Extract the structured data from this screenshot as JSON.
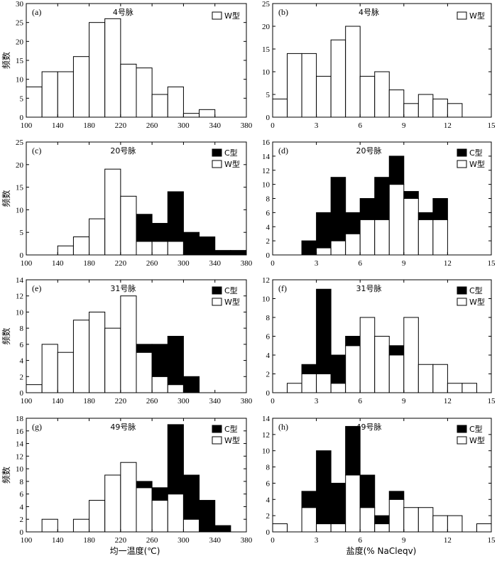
{
  "colors": {
    "C": "#000000",
    "W": "#ffffff",
    "stroke": "#000000"
  },
  "labels": {
    "y_axis": "频数",
    "x_temp": "均一温度(℃)",
    "x_salinity": "盐度(% NaCleqv)",
    "legend_C": "C型",
    "legend_W": "W型"
  },
  "chart_data": [
    {
      "panel": "(a)",
      "vein": "4号脉",
      "type": "bar",
      "x_kind": "temp",
      "xlim": [
        100,
        380
      ],
      "xticks": [
        100,
        140,
        180,
        220,
        260,
        300,
        340,
        380
      ],
      "ylim": [
        0,
        30
      ],
      "yticks": [
        0,
        5,
        10,
        15,
        20,
        25,
        30
      ],
      "bin_width": 20,
      "bins": [
        100,
        120,
        140,
        160,
        180,
        200,
        220,
        240,
        260,
        280,
        300,
        320
      ],
      "series": [
        {
          "name": "W型",
          "values": [
            8,
            12,
            12,
            16,
            25,
            26,
            14,
            13,
            6,
            8,
            1,
            2
          ]
        }
      ],
      "legend": [
        "W"
      ]
    },
    {
      "panel": "(b)",
      "vein": "4号脉",
      "type": "bar",
      "x_kind": "salinity",
      "xlim": [
        0,
        15
      ],
      "xticks": [
        0,
        3,
        6,
        9,
        12,
        15
      ],
      "ylim": [
        0,
        25
      ],
      "yticks": [
        0,
        5,
        10,
        15,
        20,
        25
      ],
      "bin_width": 1,
      "bins": [
        0,
        1,
        2,
        3,
        4,
        5,
        6,
        7,
        8,
        9,
        10,
        11,
        12
      ],
      "series": [
        {
          "name": "W型",
          "values": [
            4,
            14,
            14,
            9,
            17,
            20,
            9,
            10,
            6,
            3,
            5,
            4,
            3
          ]
        }
      ],
      "legend": [
        "W"
      ]
    },
    {
      "panel": "(c)",
      "vein": "20号脉",
      "type": "bar",
      "x_kind": "temp",
      "xlim": [
        100,
        380
      ],
      "xticks": [
        100,
        140,
        180,
        220,
        260,
        300,
        340,
        380
      ],
      "ylim": [
        0,
        25
      ],
      "yticks": [
        0,
        5,
        10,
        15,
        20,
        25
      ],
      "bin_width": 20,
      "bins": [
        140,
        160,
        180,
        200,
        220,
        240,
        260,
        280,
        300,
        320,
        340,
        360
      ],
      "series": [
        {
          "name": "W型",
          "values": [
            2,
            4,
            8,
            19,
            13,
            3,
            3,
            3,
            0,
            0,
            0,
            0
          ]
        },
        {
          "name": "C型",
          "values": [
            0,
            0,
            0,
            0,
            0,
            6,
            4,
            11,
            5,
            4,
            1,
            1
          ]
        }
      ],
      "legend": [
        "C",
        "W"
      ]
    },
    {
      "panel": "(d)",
      "vein": "20号脉",
      "type": "bar",
      "x_kind": "salinity",
      "xlim": [
        0,
        15
      ],
      "xticks": [
        0,
        3,
        6,
        9,
        12,
        15
      ],
      "ylim": [
        0,
        16
      ],
      "yticks": [
        0,
        2,
        4,
        6,
        8,
        10,
        12,
        14,
        16
      ],
      "bin_width": 1,
      "bins": [
        2,
        3,
        4,
        5,
        6,
        7,
        8,
        9,
        10,
        11
      ],
      "series": [
        {
          "name": "W型",
          "values": [
            0,
            1,
            2,
            3,
            5,
            5,
            10,
            8,
            5,
            5
          ]
        },
        {
          "name": "C型",
          "values": [
            2,
            5,
            9,
            3,
            3,
            6,
            4,
            1,
            1,
            3
          ]
        }
      ],
      "legend": [
        "C",
        "W"
      ]
    },
    {
      "panel": "(e)",
      "vein": "31号脉",
      "type": "bar",
      "x_kind": "temp",
      "xlim": [
        100,
        380
      ],
      "xticks": [
        100,
        140,
        180,
        220,
        260,
        300,
        340,
        380
      ],
      "ylim": [
        0,
        14
      ],
      "yticks": [
        0,
        2,
        4,
        6,
        8,
        10,
        12,
        14
      ],
      "bin_width": 20,
      "bins": [
        100,
        120,
        140,
        160,
        180,
        200,
        220,
        240,
        260,
        280,
        300
      ],
      "series": [
        {
          "name": "W型",
          "values": [
            1,
            6,
            5,
            9,
            10,
            8,
            12,
            5,
            2,
            1,
            0
          ]
        },
        {
          "name": "C型",
          "values": [
            0,
            0,
            0,
            0,
            0,
            0,
            0,
            1,
            4,
            6,
            2
          ]
        }
      ],
      "legend": [
        "C",
        "W"
      ]
    },
    {
      "panel": "(f)",
      "vein": "31号脉",
      "type": "bar",
      "x_kind": "salinity",
      "xlim": [
        0,
        15
      ],
      "xticks": [
        0,
        3,
        6,
        9,
        12,
        15
      ],
      "ylim": [
        0,
        12
      ],
      "yticks": [
        0,
        2,
        4,
        6,
        8,
        10,
        12
      ],
      "bin_width": 1,
      "bins": [
        1,
        2,
        3,
        4,
        5,
        6,
        7,
        8,
        9,
        10,
        11,
        12,
        13
      ],
      "series": [
        {
          "name": "W型",
          "values": [
            1,
            2,
            2,
            1,
            5,
            8,
            6,
            4,
            8,
            3,
            3,
            1,
            1
          ]
        },
        {
          "name": "C型",
          "values": [
            0,
            1,
            9,
            3,
            1,
            0,
            0,
            1,
            0,
            0,
            0,
            0,
            0
          ]
        }
      ],
      "legend": [
        "C",
        "W"
      ]
    },
    {
      "panel": "(g)",
      "vein": "49号脉",
      "type": "bar",
      "x_kind": "temp",
      "xlim": [
        100,
        380
      ],
      "xticks": [
        100,
        140,
        180,
        220,
        260,
        300,
        340,
        380
      ],
      "ylim": [
        0,
        18
      ],
      "yticks": [
        0,
        2,
        4,
        6,
        8,
        10,
        12,
        14,
        16,
        18
      ],
      "bin_width": 20,
      "bins": [
        120,
        140,
        160,
        180,
        200,
        220,
        240,
        260,
        280,
        300,
        320,
        340
      ],
      "series": [
        {
          "name": "W型",
          "values": [
            2,
            0,
            2,
            5,
            9,
            11,
            7,
            5,
            6,
            2,
            0,
            0
          ]
        },
        {
          "name": "C型",
          "values": [
            0,
            0,
            0,
            0,
            0,
            0,
            1,
            2,
            11,
            7,
            5,
            1
          ]
        }
      ],
      "legend": [
        "C",
        "W"
      ]
    },
    {
      "panel": "(h)",
      "vein": "49号脉",
      "type": "bar",
      "x_kind": "salinity",
      "xlim": [
        0,
        15
      ],
      "xticks": [
        0,
        3,
        6,
        9,
        12,
        15
      ],
      "ylim": [
        0,
        14
      ],
      "yticks": [
        0,
        2,
        4,
        6,
        8,
        10,
        12,
        14
      ],
      "bin_width": 1,
      "bins": [
        0,
        2,
        3,
        4,
        5,
        6,
        7,
        8,
        9,
        10,
        11,
        12,
        14
      ],
      "series": [
        {
          "name": "W型",
          "values": [
            1,
            3,
            1,
            1,
            7,
            3,
            1,
            4,
            3,
            3,
            2,
            2,
            1
          ]
        },
        {
          "name": "C型",
          "values": [
            0,
            2,
            9,
            5,
            6,
            4,
            1,
            1,
            0,
            0,
            0,
            0,
            0
          ]
        }
      ],
      "legend": [
        "C",
        "W"
      ]
    }
  ]
}
